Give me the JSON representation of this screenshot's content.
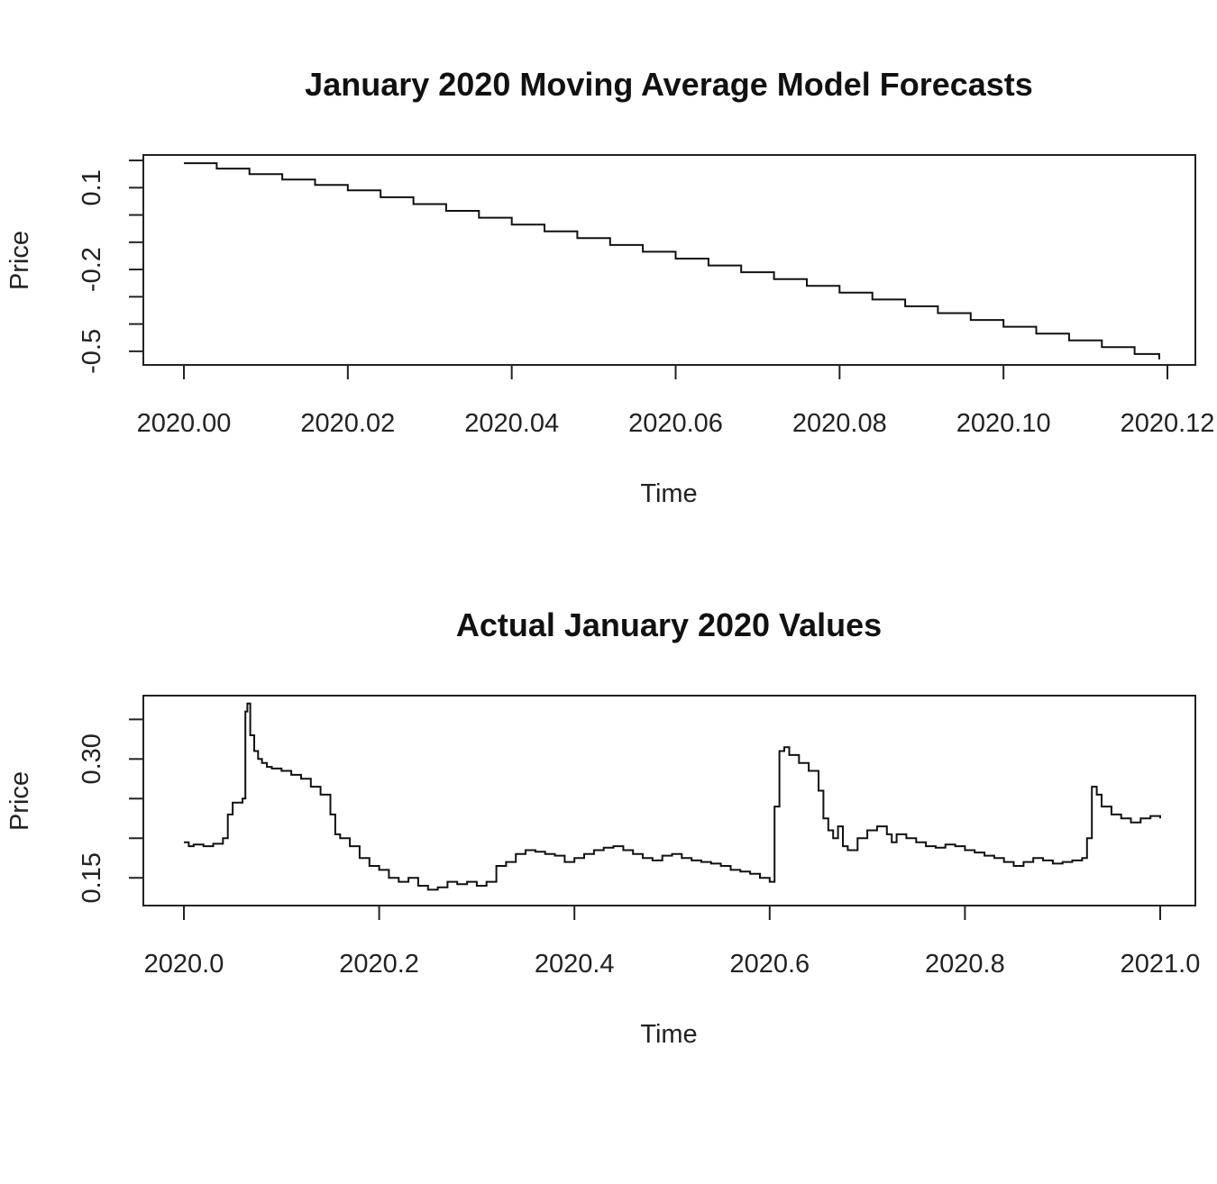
{
  "chart_data": [
    {
      "type": "line",
      "title": "January 2020 Moving Average Model Forecasts",
      "xlabel": "Time",
      "ylabel": "Price",
      "xlim": [
        2020.0,
        2020.12
      ],
      "ylim": [
        -0.55,
        0.22
      ],
      "x_ticks": [
        2020.0,
        2020.02,
        2020.04,
        2020.06,
        2020.08,
        2020.1,
        2020.12
      ],
      "x_tick_labels": [
        "2020.00",
        "2020.02",
        "2020.04",
        "2020.06",
        "2020.08",
        "2020.10",
        "2020.12"
      ],
      "y_ticks": [
        -0.5,
        -0.4,
        -0.3,
        -0.2,
        -0.1,
        0.0,
        0.1,
        0.2
      ],
      "y_tick_labels": [
        "-0.5",
        "",
        "",
        "-0.2",
        "",
        "",
        "0.1",
        ""
      ],
      "grid": false,
      "step": true,
      "series": [
        {
          "x": [
            2020.0,
            2020.004,
            2020.008,
            2020.012,
            2020.016,
            2020.02,
            2020.024,
            2020.028,
            2020.032,
            2020.036,
            2020.04,
            2020.044,
            2020.048,
            2020.052,
            2020.056,
            2020.06,
            2020.064,
            2020.068,
            2020.072,
            2020.076,
            2020.08,
            2020.084,
            2020.088,
            2020.092,
            2020.096,
            2020.1,
            2020.104,
            2020.108,
            2020.112,
            2020.116,
            2020.119
          ],
          "values": [
            0.19,
            0.17,
            0.15,
            0.13,
            0.11,
            0.09,
            0.065,
            0.04,
            0.015,
            -0.01,
            -0.035,
            -0.06,
            -0.085,
            -0.11,
            -0.135,
            -0.16,
            -0.185,
            -0.21,
            -0.235,
            -0.26,
            -0.285,
            -0.31,
            -0.335,
            -0.36,
            -0.385,
            -0.41,
            -0.435,
            -0.46,
            -0.485,
            -0.51,
            -0.53
          ]
        }
      ]
    },
    {
      "type": "line",
      "title": "Actual January 2020 Values",
      "xlabel": "Time",
      "ylabel": "Price",
      "xlim": [
        2020.0,
        2021.0
      ],
      "ylim": [
        0.115,
        0.38
      ],
      "x_ticks": [
        2020.0,
        2020.2,
        2020.4,
        2020.6,
        2020.8,
        2021.0
      ],
      "x_tick_labels": [
        "2020.0",
        "2020.2",
        "2020.4",
        "2020.6",
        "2020.8",
        "2021.0"
      ],
      "y_ticks": [
        0.15,
        0.2,
        0.25,
        0.3,
        0.35
      ],
      "y_tick_labels": [
        "0.15",
        "",
        "",
        "0.30",
        ""
      ],
      "grid": false,
      "step": true,
      "series": [
        {
          "x": [
            2020.0,
            2020.005,
            2020.01,
            2020.02,
            2020.03,
            2020.04,
            2020.045,
            2020.05,
            2020.06,
            2020.063,
            2020.065,
            2020.068,
            2020.072,
            2020.076,
            2020.08,
            2020.085,
            2020.09,
            2020.1,
            2020.11,
            2020.12,
            2020.13,
            2020.14,
            2020.15,
            2020.155,
            2020.16,
            2020.17,
            2020.18,
            2020.19,
            2020.2,
            2020.21,
            2020.22,
            2020.23,
            2020.24,
            2020.25,
            2020.26,
            2020.27,
            2020.28,
            2020.29,
            2020.3,
            2020.31,
            2020.32,
            2020.33,
            2020.34,
            2020.35,
            2020.36,
            2020.37,
            2020.38,
            2020.39,
            2020.4,
            2020.41,
            2020.42,
            2020.43,
            2020.44,
            2020.45,
            2020.46,
            2020.47,
            2020.48,
            2020.49,
            2020.5,
            2020.51,
            2020.52,
            2020.53,
            2020.54,
            2020.55,
            2020.56,
            2020.57,
            2020.58,
            2020.59,
            2020.6,
            2020.605,
            2020.61,
            2020.615,
            2020.62,
            2020.63,
            2020.64,
            2020.65,
            2020.655,
            2020.66,
            2020.665,
            2020.67,
            2020.675,
            2020.68,
            2020.69,
            2020.7,
            2020.71,
            2020.72,
            2020.725,
            2020.73,
            2020.74,
            2020.75,
            2020.76,
            2020.77,
            2020.78,
            2020.79,
            2020.8,
            2020.81,
            2020.82,
            2020.83,
            2020.84,
            2020.85,
            2020.86,
            2020.87,
            2020.88,
            2020.89,
            2020.9,
            2020.91,
            2020.92,
            2020.925,
            2020.93,
            2020.935,
            2020.94,
            2020.95,
            2020.96,
            2020.97,
            2020.98,
            2020.99,
            2021.0
          ],
          "values": [
            0.195,
            0.19,
            0.192,
            0.19,
            0.193,
            0.2,
            0.23,
            0.245,
            0.25,
            0.36,
            0.37,
            0.33,
            0.31,
            0.3,
            0.295,
            0.29,
            0.288,
            0.285,
            0.28,
            0.275,
            0.265,
            0.255,
            0.23,
            0.205,
            0.2,
            0.19,
            0.175,
            0.165,
            0.16,
            0.15,
            0.145,
            0.15,
            0.14,
            0.135,
            0.138,
            0.145,
            0.142,
            0.145,
            0.14,
            0.145,
            0.165,
            0.17,
            0.18,
            0.185,
            0.183,
            0.18,
            0.178,
            0.17,
            0.175,
            0.18,
            0.185,
            0.188,
            0.19,
            0.185,
            0.18,
            0.175,
            0.172,
            0.178,
            0.18,
            0.175,
            0.172,
            0.17,
            0.168,
            0.165,
            0.16,
            0.158,
            0.155,
            0.15,
            0.145,
            0.24,
            0.31,
            0.315,
            0.305,
            0.295,
            0.285,
            0.26,
            0.225,
            0.21,
            0.2,
            0.215,
            0.19,
            0.185,
            0.2,
            0.21,
            0.215,
            0.205,
            0.195,
            0.205,
            0.2,
            0.195,
            0.19,
            0.188,
            0.192,
            0.19,
            0.185,
            0.182,
            0.178,
            0.175,
            0.17,
            0.165,
            0.17,
            0.175,
            0.172,
            0.168,
            0.17,
            0.172,
            0.175,
            0.2,
            0.265,
            0.255,
            0.24,
            0.23,
            0.225,
            0.22,
            0.225,
            0.228,
            0.225
          ]
        }
      ]
    }
  ]
}
